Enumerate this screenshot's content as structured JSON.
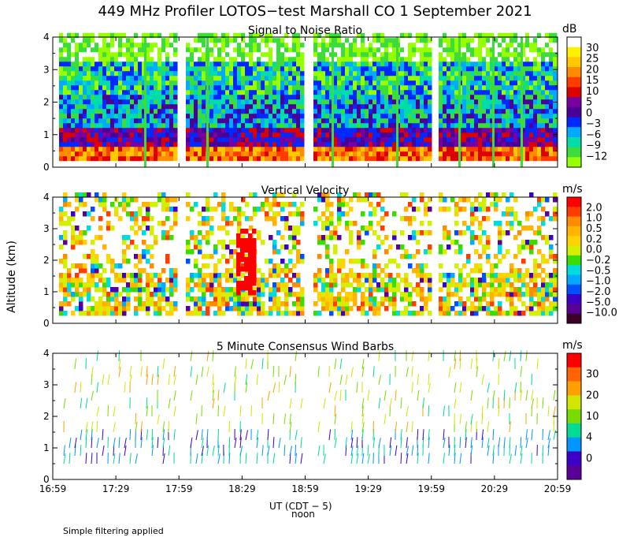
{
  "figure": {
    "title": "449 MHz Profiler LOTOS−test Marshall CO   1 September 2021",
    "ylabel": "Altitude (km)",
    "xlabel": "UT  (CDT − 5)",
    "noon_label": "noon",
    "note": "Simple filtering applied",
    "x_ticks": [
      "16:59",
      "17:29",
      "17:59",
      "18:29",
      "18:59",
      "19:29",
      "19:59",
      "20:29",
      "20:59"
    ],
    "y_ticks": [
      "0",
      "1",
      "2",
      "3",
      "4"
    ]
  },
  "chart_data": [
    {
      "type": "heatmap",
      "title": "Signal to Noise Ratio",
      "units": "dB",
      "ylabel": "Altitude (km)",
      "ylim": [
        0,
        4
      ],
      "x_range": [
        "16:59",
        "20:59"
      ],
      "colorbar_ticks": [
        "30",
        "25",
        "20",
        "15",
        "10",
        "5",
        "0",
        "−3",
        "−6",
        "−9",
        "−12"
      ],
      "colorbar_colors": [
        "#ffffff",
        "#fff000",
        "#ffc800",
        "#ff8c00",
        "#ff3c00",
        "#dc0000",
        "#7800a0",
        "#4b0096",
        "#0028ff",
        "#00aaff",
        "#00dcaa",
        "#3cdc3c",
        "#96ff00"
      ]
    },
    {
      "type": "heatmap",
      "title": "Vertical Velocity",
      "units": "m/s",
      "ylabel": "Altitude (km)",
      "ylim": [
        0,
        4
      ],
      "x_range": [
        "16:59",
        "20:59"
      ],
      "colorbar_ticks": [
        "2.0",
        "1.0",
        "0.5",
        "0.2",
        "0.0",
        "−0.2",
        "−0.5",
        "−1.0",
        "−2.0",
        "−5.0",
        "−10.0"
      ],
      "colorbar_colors": [
        "#ff0000",
        "#ff3c00",
        "#ff8c00",
        "#ffb400",
        "#ffd200",
        "#d2f000",
        "#3cdc00",
        "#00dcdc",
        "#00aaff",
        "#0050ff",
        "#3c00c8",
        "#5a0096",
        "#3c0028"
      ]
    },
    {
      "type": "scatter",
      "title": "5 Minute Consensus Wind Barbs",
      "units": "m/s",
      "ylabel": "Altitude (km)",
      "ylim": [
        0,
        4
      ],
      "x_range": [
        "16:59",
        "20:59"
      ],
      "colorbar_ticks": [
        "30",
        "20",
        "10",
        "4",
        "0"
      ],
      "colorbar_colors": [
        "#ff0000",
        "#ff6400",
        "#ffa000",
        "#d2e600",
        "#78dc00",
        "#00dc96",
        "#0096ff",
        "#3c00c8",
        "#5a0096"
      ]
    }
  ]
}
